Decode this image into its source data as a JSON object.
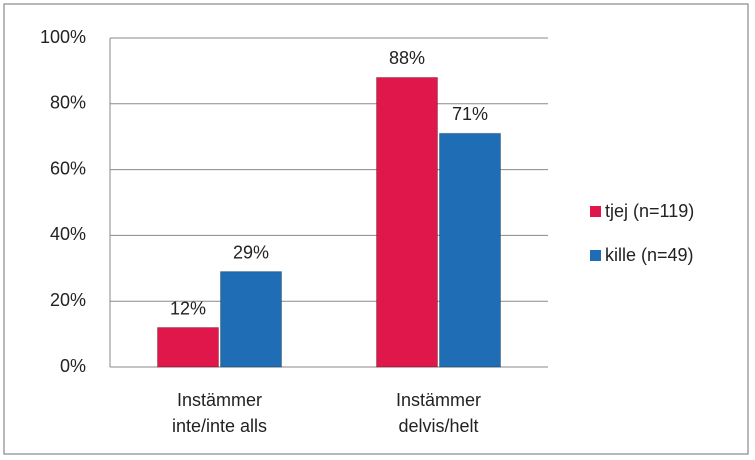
{
  "chart_data": {
    "type": "bar",
    "categories": [
      "Instämmer inte/inte alls",
      "Instämmer delvis/helt"
    ],
    "series": [
      {
        "name": "tjej (n=119)",
        "color": "#e0174b",
        "values": [
          12,
          88
        ],
        "value_labels": [
          "12%",
          "88%"
        ]
      },
      {
        "name": "kille (n=49)",
        "color": "#1f6db5",
        "values": [
          29,
          71
        ],
        "value_labels": [
          "29%",
          "71%"
        ]
      }
    ],
    "ylim": [
      0,
      100
    ],
    "yticks": [
      {
        "value": 0,
        "label": "0%"
      },
      {
        "value": 20,
        "label": "20%"
      },
      {
        "value": 40,
        "label": "40%"
      },
      {
        "value": 60,
        "label": "60%"
      },
      {
        "value": 80,
        "label": "80%"
      },
      {
        "value": 100,
        "label": "100%"
      }
    ],
    "grid": true,
    "legend": "right"
  }
}
